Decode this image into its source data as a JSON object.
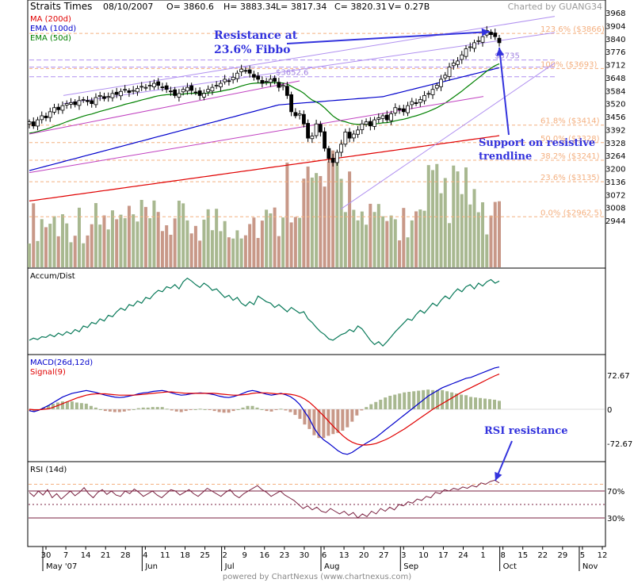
{
  "header": {
    "symbol": "Straits Times",
    "date": "08/10/2007",
    "open": "O= 3860.6",
    "high": "H= 3883.34",
    "low": "L= 3817.34",
    "close": "C= 3820.31",
    "volume": "V= 0.27B",
    "charted_by": "Charted by GUANG34"
  },
  "legend": [
    {
      "label": "MA (200d)",
      "color": "#e00000"
    },
    {
      "label": "EMA (100d)",
      "color": "#0000cc"
    },
    {
      "label": "EMA (50d)",
      "color": "#008000"
    }
  ],
  "footer": "powered by ChartNexus (www.chartnexus.com)",
  "annotations": {
    "resistance": [
      "Resistance at",
      "23.6% Fibbo"
    ],
    "support": [
      "Support on resistive",
      "trendline"
    ],
    "rsi": "RSI resistance"
  },
  "panels": {
    "accum": "Accum/Dist",
    "macd": "MACD(26d,12d)",
    "signal": "Signal(9)",
    "rsi": "RSI (14d)"
  },
  "colors": {
    "up_vol": "#a8b890",
    "down_vol": "#c89888",
    "fib": "#f4b080",
    "ma200": "#e00000",
    "ema100": "#0000cc",
    "ema50": "#008000",
    "channel": "#c040c0",
    "trend": "#b090f0",
    "annotation": "#3333dd",
    "grid": "#dddddd"
  },
  "chart_data": [
    {
      "type": "candlestick",
      "title": "Straits Times",
      "price_ticks": [
        3968,
        3904,
        3840,
        3776,
        3712,
        3648,
        3584,
        3520,
        3456,
        3392,
        3328,
        3264,
        3200,
        3136,
        3072,
        3008,
        2944
      ],
      "ylim": [
        2944,
        3968
      ],
      "x_ticks": [
        "30",
        "7",
        "14",
        "21",
        "28",
        "4",
        "11",
        "18",
        "25",
        "2",
        "9",
        "16",
        "23",
        "30",
        "6",
        "13",
        "20",
        "27",
        "3",
        "10",
        "17",
        "24",
        "1",
        "8",
        "15",
        "22",
        "29",
        "5",
        "12"
      ],
      "months": [
        "May '07",
        "Jun",
        "Jul",
        "Aug",
        "Sep",
        "Oct",
        "Nov"
      ],
      "fib_levels": [
        {
          "label": "123.6% ($3866)",
          "value": 3866
        },
        {
          "label": "100% ($3693)",
          "value": 3693
        },
        {
          "label": "61.8% ($3414)",
          "value": 3414
        },
        {
          "label": "50.0% ($3328)",
          "value": 3328
        },
        {
          "label": "38.2% ($3241)",
          "value": 3241
        },
        {
          "label": "23.6% ($3135)",
          "value": 3135
        },
        {
          "label": "0.0% ($2962.5)",
          "value": 2962.5
        }
      ],
      "price_labels": [
        {
          "label": "$3652.6",
          "value": 3652.6
        },
        {
          "label": "$3735",
          "value": 3735
        }
      ],
      "close": [
        3430,
        3410,
        3440,
        3460,
        3450,
        3480,
        3500,
        3490,
        3510,
        3520,
        3525,
        3515,
        3535,
        3540,
        3530,
        3520,
        3550,
        3560,
        3545,
        3555,
        3570,
        3565,
        3580,
        3590,
        3575,
        3585,
        3595,
        3605,
        3600,
        3610,
        3620,
        3610,
        3600,
        3590,
        3580,
        3560,
        3570,
        3590,
        3600,
        3585,
        3575,
        3560,
        3570,
        3590,
        3600,
        3610,
        3620,
        3640,
        3630,
        3650,
        3670,
        3690,
        3680,
        3670,
        3650,
        3640,
        3620,
        3630,
        3640,
        3630,
        3600,
        3610,
        3560,
        3480,
        3460,
        3470,
        3420,
        3350,
        3360,
        3420,
        3380,
        3300,
        3250,
        3230,
        3280,
        3320,
        3380,
        3350,
        3370,
        3390,
        3420,
        3430,
        3410,
        3440,
        3450,
        3460,
        3440,
        3470,
        3500,
        3490,
        3480,
        3510,
        3530,
        3520,
        3540,
        3560,
        3570,
        3590,
        3610,
        3640,
        3660,
        3700,
        3720,
        3730,
        3760,
        3790,
        3800,
        3820,
        3830,
        3850,
        3880,
        3860,
        3850,
        3820
      ]
    },
    {
      "type": "line",
      "title": "Accum/Dist",
      "values": [
        0.1,
        0.13,
        0.11,
        0.15,
        0.14,
        0.18,
        0.15,
        0.2,
        0.17,
        0.22,
        0.19,
        0.25,
        0.22,
        0.3,
        0.28,
        0.35,
        0.33,
        0.4,
        0.37,
        0.45,
        0.43,
        0.5,
        0.55,
        0.52,
        0.6,
        0.58,
        0.65,
        0.62,
        0.7,
        0.68,
        0.75,
        0.8,
        0.78,
        0.85,
        0.83,
        0.88,
        0.82,
        0.92,
        0.97,
        0.93,
        0.88,
        0.84,
        0.9,
        0.86,
        0.8,
        0.82,
        0.76,
        0.7,
        0.73,
        0.66,
        0.7,
        0.62,
        0.58,
        0.64,
        0.6,
        0.72,
        0.68,
        0.64,
        0.62,
        0.56,
        0.6,
        0.55,
        0.5,
        0.56,
        0.52,
        0.48,
        0.5,
        0.4,
        0.35,
        0.28,
        0.22,
        0.18,
        0.12,
        0.1,
        0.14,
        0.18,
        0.2,
        0.25,
        0.22,
        0.3,
        0.26,
        0.18,
        0.1,
        0.04,
        0.08,
        0.02,
        0.08,
        0.15,
        0.22,
        0.28,
        0.34,
        0.4,
        0.38,
        0.46,
        0.52,
        0.48,
        0.55,
        0.62,
        0.58,
        0.66,
        0.72,
        0.68,
        0.76,
        0.82,
        0.78,
        0.85,
        0.88,
        0.82,
        0.9,
        0.86,
        0.92,
        0.95,
        0.9,
        0.93
      ]
    },
    {
      "type": "line",
      "title": "MACD(26d,12d)",
      "y_ticks": [
        72.67,
        0,
        -72.67
      ],
      "ylim": [
        -100,
        100
      ],
      "series": [
        {
          "name": "MACD(26d,12d)",
          "values": [
            -3,
            -5,
            -2,
            3,
            8,
            14,
            20,
            26,
            30,
            34,
            36,
            38,
            40,
            38,
            36,
            33,
            30,
            28,
            26,
            25,
            26,
            28,
            30,
            33,
            35,
            36,
            38,
            39,
            40,
            38,
            35,
            32,
            30,
            31,
            33,
            34,
            35,
            34,
            33,
            31,
            28,
            26,
            25,
            27,
            30,
            34,
            38,
            40,
            38,
            35,
            32,
            30,
            32,
            34,
            31,
            27,
            20,
            10,
            -5,
            -20,
            -40,
            -55,
            -65,
            -72,
            -80,
            -88,
            -94,
            -96,
            -92,
            -85,
            -78,
            -72,
            -66,
            -60,
            -52,
            -44,
            -36,
            -28,
            -20,
            -12,
            -4,
            4,
            12,
            20,
            28,
            34,
            40,
            46,
            50,
            54,
            58,
            62,
            66,
            68,
            72,
            76,
            80,
            84,
            88,
            90
          ]
        },
        {
          "name": "Signal(9)",
          "values": [
            0,
            -1,
            -1,
            0,
            1,
            4,
            8,
            12,
            16,
            20,
            24,
            27,
            30,
            32,
            33,
            33,
            33,
            32,
            31,
            30,
            30,
            30,
            30,
            31,
            32,
            33,
            34,
            35,
            36,
            37,
            37,
            36,
            35,
            34,
            34,
            34,
            34,
            34,
            34,
            34,
            33,
            32,
            31,
            30,
            30,
            31,
            32,
            34,
            35,
            35,
            35,
            34,
            33,
            33,
            33,
            32,
            30,
            27,
            22,
            15,
            6,
            -4,
            -14,
            -25,
            -36,
            -46,
            -56,
            -64,
            -70,
            -74,
            -76,
            -76,
            -75,
            -73,
            -69,
            -65,
            -60,
            -54,
            -48,
            -42,
            -35,
            -28,
            -21,
            -14,
            -7,
            0,
            6,
            12,
            18,
            24,
            30,
            36,
            41,
            46,
            51,
            56,
            61,
            66,
            71,
            75
          ]
        }
      ]
    },
    {
      "type": "line",
      "title": "RSI (14d)",
      "y_ticks": [
        "70%",
        "30%"
      ],
      "ylim": [
        0,
        100
      ],
      "values": [
        68,
        62,
        70,
        64,
        72,
        60,
        66,
        58,
        64,
        70,
        63,
        68,
        75,
        66,
        60,
        68,
        72,
        65,
        70,
        64,
        62,
        70,
        66,
        73,
        68,
        62,
        66,
        70,
        64,
        60,
        66,
        72,
        70,
        64,
        68,
        72,
        66,
        62,
        68,
        74,
        70,
        66,
        62,
        68,
        72,
        64,
        60,
        66,
        70,
        74,
        78,
        72,
        68,
        62,
        66,
        70,
        64,
        60,
        56,
        50,
        44,
        48,
        42,
        46,
        40,
        38,
        44,
        40,
        36,
        40,
        34,
        38,
        30,
        36,
        32,
        40,
        36,
        44,
        40,
        46,
        42,
        50,
        48,
        54,
        52,
        58,
        56,
        62,
        60,
        68,
        66,
        72,
        70,
        74,
        72,
        76,
        74,
        78,
        76,
        82,
        80,
        84,
        86,
        82
      ]
    }
  ]
}
